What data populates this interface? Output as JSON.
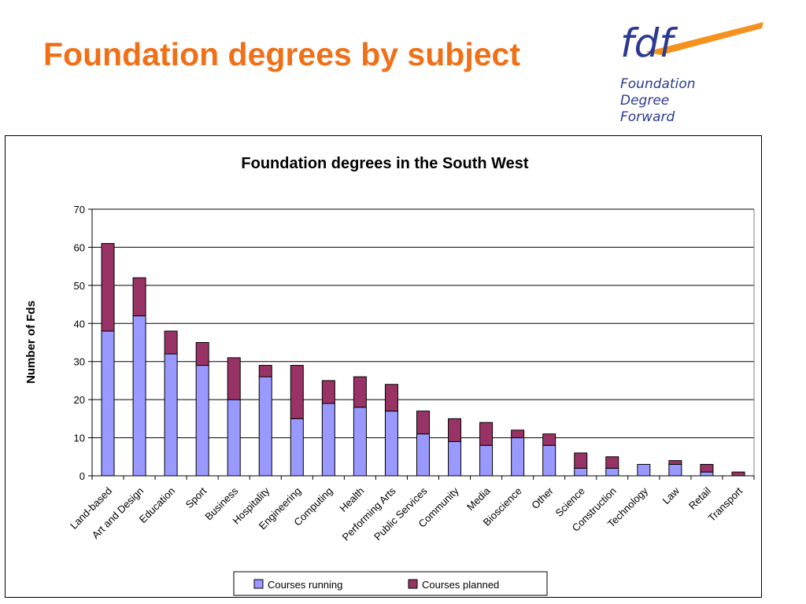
{
  "slide": {
    "title": "Foundation degrees by subject"
  },
  "logo": {
    "mark": "fdf",
    "line1": "Foundation",
    "line2": "Degree",
    "line3": "Forward"
  },
  "colors": {
    "title": "#f07018",
    "running": "#9999ff",
    "planned": "#993366",
    "logo_navy": "#2b3a8f",
    "logo_orange": "#f5921e"
  },
  "chart_data": {
    "type": "bar",
    "stacked": true,
    "title": "Foundation degrees in the South West",
    "xlabel": "",
    "ylabel": "Number of Fds",
    "ylim": [
      0,
      70
    ],
    "yticks": [
      0,
      10,
      20,
      30,
      40,
      50,
      60,
      70
    ],
    "grid": true,
    "legend_position": "bottom",
    "categories": [
      "Land-based",
      "Art and Design",
      "Education",
      "Sport",
      "Business",
      "Hospitality",
      "Engineering",
      "Computing",
      "Health",
      "Performing Arts",
      "Public Services",
      "Community",
      "Media",
      "Bioscience",
      "Other",
      "Science",
      "Construction",
      "Technology",
      "Law",
      "Retail",
      "Transport"
    ],
    "series": [
      {
        "name": "Courses running",
        "color": "#9999ff",
        "values": [
          38,
          42,
          32,
          29,
          20,
          26,
          15,
          19,
          18,
          17,
          11,
          9,
          8,
          10,
          8,
          2,
          2,
          3,
          3,
          1,
          0
        ]
      },
      {
        "name": "Courses planned",
        "color": "#993366",
        "values": [
          23,
          10,
          6,
          6,
          11,
          3,
          14,
          6,
          8,
          7,
          6,
          6,
          6,
          2,
          3,
          4,
          3,
          0,
          1,
          2,
          1
        ]
      }
    ]
  }
}
